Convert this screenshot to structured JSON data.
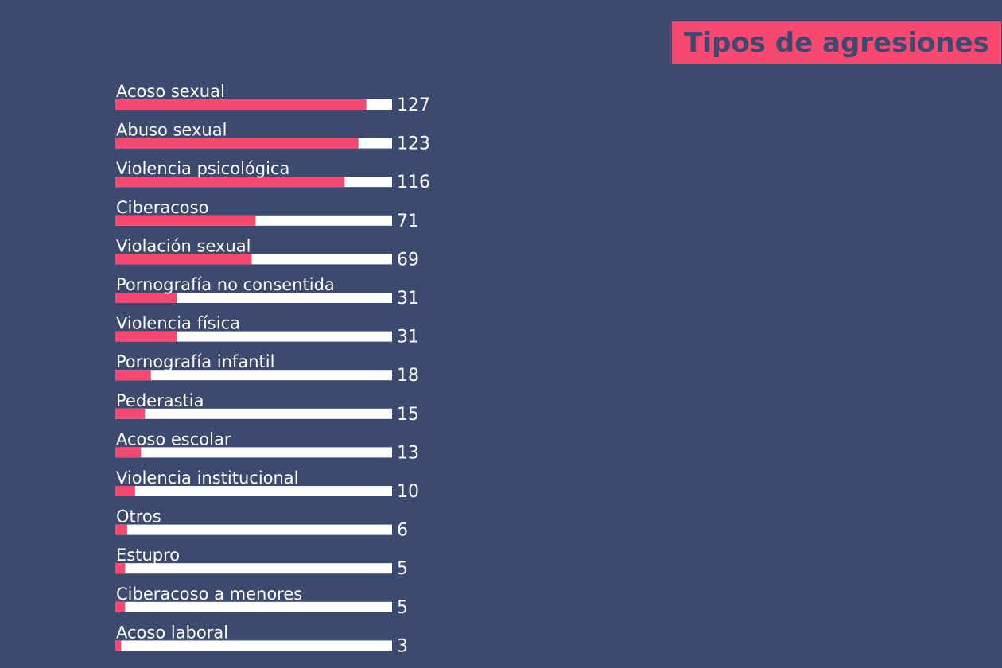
{
  "chart_data": {
    "type": "bar",
    "orientation": "horizontal",
    "title": "Tipos de agresiones",
    "categories": [
      "Acoso sexual",
      "Abuso sexual",
      "Violencia psicológica",
      "Ciberacoso",
      "Violación sexual",
      "Pornografía no consentida",
      "Violencia física",
      "Pornografía infantil",
      "Pederastia",
      "Acoso escolar",
      "Violencia institucional",
      "Otros",
      "Estupro",
      "Ciberacoso a menores",
      "Acoso laboral"
    ],
    "values": [
      127,
      123,
      116,
      71,
      69,
      31,
      31,
      18,
      15,
      13,
      10,
      6,
      5,
      5,
      3
    ],
    "value_labels": [
      "127",
      "123",
      "116",
      "71",
      "69",
      "31",
      "31",
      "18",
      "15",
      "13",
      "10",
      "6",
      "5",
      "5",
      "3"
    ],
    "xlim": [
      0,
      140
    ],
    "grid": false,
    "colors": {
      "background": "#3d4a70",
      "bar": "#f7486f",
      "track": "#ffffff",
      "title_box": "#f7486f",
      "title_text": "#3d4a70",
      "text": "#ffffff"
    }
  }
}
